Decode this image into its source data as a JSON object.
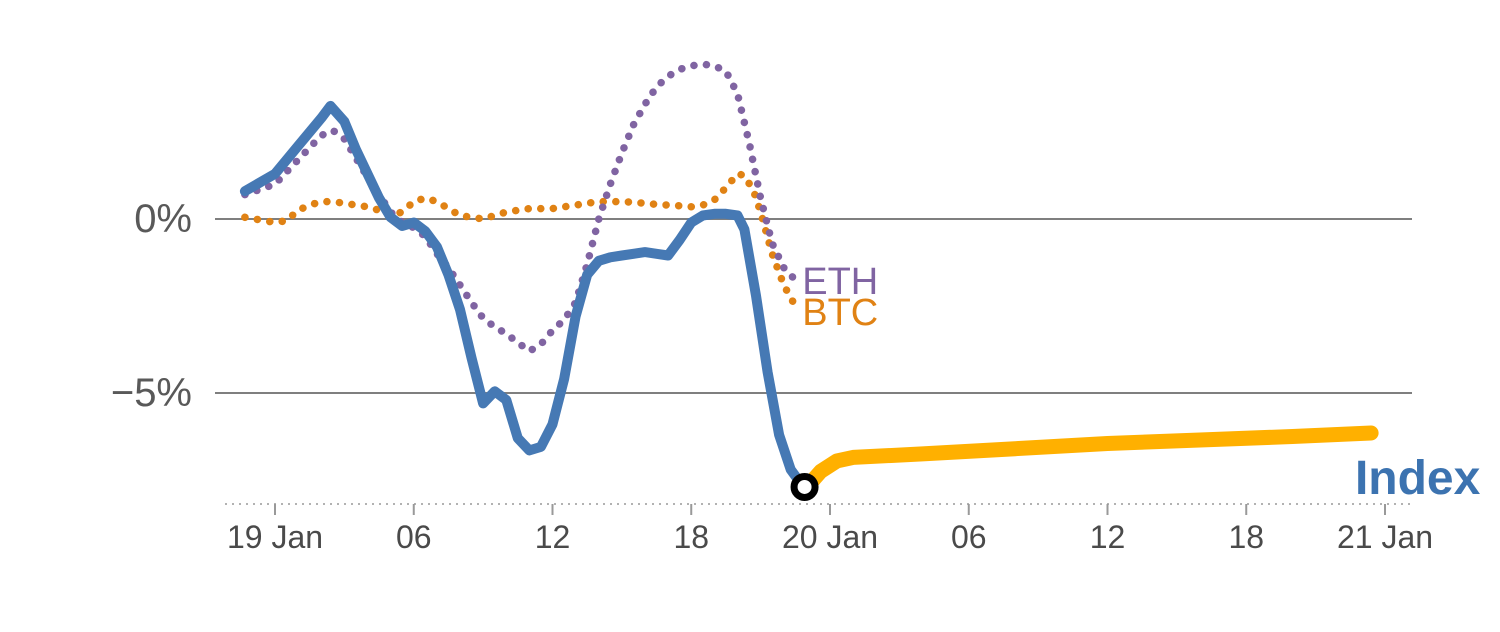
{
  "chart_data": {
    "type": "line",
    "x_unit": "hours since 19 Jan 00:00",
    "x_axis": {
      "range_hours": [
        -1.3,
        49.2
      ],
      "ticks": [
        {
          "hour": 0,
          "label": "19 Jan"
        },
        {
          "hour": 6,
          "label": "06"
        },
        {
          "hour": 12,
          "label": "12"
        },
        {
          "hour": 18,
          "label": "18"
        },
        {
          "hour": 24,
          "label": "20 Jan"
        },
        {
          "hour": 30,
          "label": "06"
        },
        {
          "hour": 36,
          "label": "12"
        },
        {
          "hour": 42,
          "label": "18"
        },
        {
          "hour": 48,
          "label": "21 Jan"
        }
      ]
    },
    "y_axis": {
      "unit": "percent",
      "gridlines": [
        {
          "value": 0,
          "label": "0%"
        },
        {
          "value": -5,
          "label": "−5%"
        }
      ]
    },
    "grid_color": "#7f7f7f",
    "axis_color": "#999999",
    "tick_label_color": "#4a4a4a",
    "y_label_color": "#595959",
    "series": [
      {
        "id": "btc",
        "name": "BTC",
        "color": "#E08214",
        "style": "dotted",
        "width": 7.5,
        "points": [
          [
            -1.3,
            0.05
          ],
          [
            0,
            -0.1
          ],
          [
            0.5,
            -0.05
          ],
          [
            1,
            0.25
          ],
          [
            1.5,
            0.4
          ],
          [
            2,
            0.5
          ],
          [
            2.5,
            0.5
          ],
          [
            3,
            0.45
          ],
          [
            3.5,
            0.4
          ],
          [
            4,
            0.35
          ],
          [
            4.5,
            0.25
          ],
          [
            5,
            0.1
          ],
          [
            5.5,
            0.2
          ],
          [
            6,
            0.5
          ],
          [
            6.5,
            0.6
          ],
          [
            7,
            0.5
          ],
          [
            7.5,
            0.3
          ],
          [
            8,
            0.1
          ],
          [
            8.5,
            0.05
          ],
          [
            9,
            0.0
          ],
          [
            9.5,
            0.1
          ],
          [
            10,
            0.2
          ],
          [
            10.5,
            0.25
          ],
          [
            11,
            0.3
          ],
          [
            11.5,
            0.3
          ],
          [
            12,
            0.3
          ],
          [
            12.5,
            0.35
          ],
          [
            13,
            0.4
          ],
          [
            13.5,
            0.45
          ],
          [
            14,
            0.5
          ],
          [
            14.5,
            0.5
          ],
          [
            15,
            0.5
          ],
          [
            15.5,
            0.48
          ],
          [
            16,
            0.45
          ],
          [
            16.5,
            0.42
          ],
          [
            17,
            0.4
          ],
          [
            17.5,
            0.38
          ],
          [
            18,
            0.35
          ],
          [
            18.5,
            0.4
          ],
          [
            19,
            0.55
          ],
          [
            19.5,
            0.9
          ],
          [
            20,
            1.3
          ],
          [
            20.3,
            1.25
          ],
          [
            20.7,
            0.8
          ],
          [
            21,
            0.2
          ],
          [
            21.5,
            -1.0
          ],
          [
            22,
            -1.9
          ],
          [
            22.5,
            -2.5
          ]
        ]
      },
      {
        "id": "eth",
        "name": "ETH",
        "color": "#8064A2",
        "style": "dotted",
        "width": 7.5,
        "points": [
          [
            -1.3,
            0.7
          ],
          [
            0,
            1.0
          ],
          [
            1,
            1.7
          ],
          [
            2,
            2.4
          ],
          [
            2.5,
            2.55
          ],
          [
            3,
            2.3
          ],
          [
            4,
            1.2
          ],
          [
            5,
            0.2
          ],
          [
            5.5,
            -0.1
          ],
          [
            6,
            -0.25
          ],
          [
            6.5,
            -0.5
          ],
          [
            7,
            -1.0
          ],
          [
            7.5,
            -1.4
          ],
          [
            8,
            -1.9
          ],
          [
            8.5,
            -2.4
          ],
          [
            9,
            -2.85
          ],
          [
            9.5,
            -3.1
          ],
          [
            10,
            -3.3
          ],
          [
            10.5,
            -3.55
          ],
          [
            11,
            -3.8
          ],
          [
            11.5,
            -3.6
          ],
          [
            12,
            -3.2
          ],
          [
            12.5,
            -2.9
          ],
          [
            13,
            -2.4
          ],
          [
            13.5,
            -1.3
          ],
          [
            14,
            0.0
          ],
          [
            14.5,
            1.0
          ],
          [
            15,
            1.9
          ],
          [
            15.5,
            2.7
          ],
          [
            16,
            3.3
          ],
          [
            16.5,
            3.8
          ],
          [
            17,
            4.1
          ],
          [
            17.5,
            4.3
          ],
          [
            18,
            4.4
          ],
          [
            18.5,
            4.45
          ],
          [
            19,
            4.4
          ],
          [
            19.5,
            4.25
          ],
          [
            20,
            3.6
          ],
          [
            20.5,
            2.2
          ],
          [
            21,
            0.6
          ],
          [
            21.5,
            -0.7
          ],
          [
            22,
            -1.4
          ],
          [
            22.5,
            -1.75
          ]
        ]
      },
      {
        "id": "index",
        "name": "Index",
        "color": "#4679B4",
        "style": "solid",
        "width": 10,
        "points": [
          [
            -1.3,
            0.8
          ],
          [
            0,
            1.3
          ],
          [
            1,
            2.1
          ],
          [
            2,
            2.9
          ],
          [
            2.4,
            3.25
          ],
          [
            3,
            2.8
          ],
          [
            3.5,
            2.0
          ],
          [
            4,
            1.3
          ],
          [
            4.5,
            0.6
          ],
          [
            5,
            0.05
          ],
          [
            5.5,
            -0.2
          ],
          [
            6,
            -0.1
          ],
          [
            6.5,
            -0.35
          ],
          [
            7,
            -0.8
          ],
          [
            7.5,
            -1.6
          ],
          [
            8,
            -2.6
          ],
          [
            8.5,
            -4.0
          ],
          [
            9,
            -5.3
          ],
          [
            9.5,
            -4.95
          ],
          [
            10,
            -5.2
          ],
          [
            10.5,
            -6.3
          ],
          [
            11,
            -6.65
          ],
          [
            11.5,
            -6.55
          ],
          [
            12,
            -5.9
          ],
          [
            12.5,
            -4.6
          ],
          [
            13,
            -2.8
          ],
          [
            13.5,
            -1.6
          ],
          [
            14,
            -1.2
          ],
          [
            14.5,
            -1.1
          ],
          [
            15,
            -1.05
          ],
          [
            16,
            -0.95
          ],
          [
            16.5,
            -1.0
          ],
          [
            17,
            -1.05
          ],
          [
            17.5,
            -0.6
          ],
          [
            18,
            -0.1
          ],
          [
            18.5,
            0.1
          ],
          [
            19,
            0.15
          ],
          [
            19.5,
            0.15
          ],
          [
            20,
            0.1
          ],
          [
            20.3,
            -0.3
          ],
          [
            20.8,
            -2.2
          ],
          [
            21.3,
            -4.4
          ],
          [
            21.8,
            -6.2
          ],
          [
            22.3,
            -7.2
          ],
          [
            22.9,
            -7.75
          ]
        ]
      },
      {
        "id": "index-forecast",
        "name": "Index continuation",
        "color": "#FFB000",
        "style": "solid",
        "width": 15,
        "points": [
          [
            23.0,
            -7.7
          ],
          [
            23.6,
            -7.25
          ],
          [
            24.3,
            -6.95
          ],
          [
            25,
            -6.85
          ],
          [
            28,
            -6.75
          ],
          [
            32,
            -6.6
          ],
          [
            36,
            -6.45
          ],
          [
            40,
            -6.35
          ],
          [
            44,
            -6.25
          ],
          [
            47.4,
            -6.15
          ]
        ]
      }
    ],
    "marker": {
      "id": "current-point",
      "hour": 22.9,
      "value": -7.7,
      "shape": "open-circle",
      "stroke": "#000000",
      "fill": "#ffffff"
    },
    "series_labels": [
      {
        "id": "eth",
        "text": "ETH",
        "hour": 22.8,
        "value": -2.15,
        "color": "#8064A2",
        "size": 38,
        "weight": "normal"
      },
      {
        "id": "btc",
        "text": "BTC",
        "hour": 22.8,
        "value": -3.05,
        "color": "#E08214",
        "size": 38,
        "weight": "normal"
      },
      {
        "id": "index",
        "text": "Index",
        "hour": 46.7,
        "value": -7.9,
        "color": "#3C73B0",
        "size": 48,
        "weight": "bold"
      }
    ]
  }
}
